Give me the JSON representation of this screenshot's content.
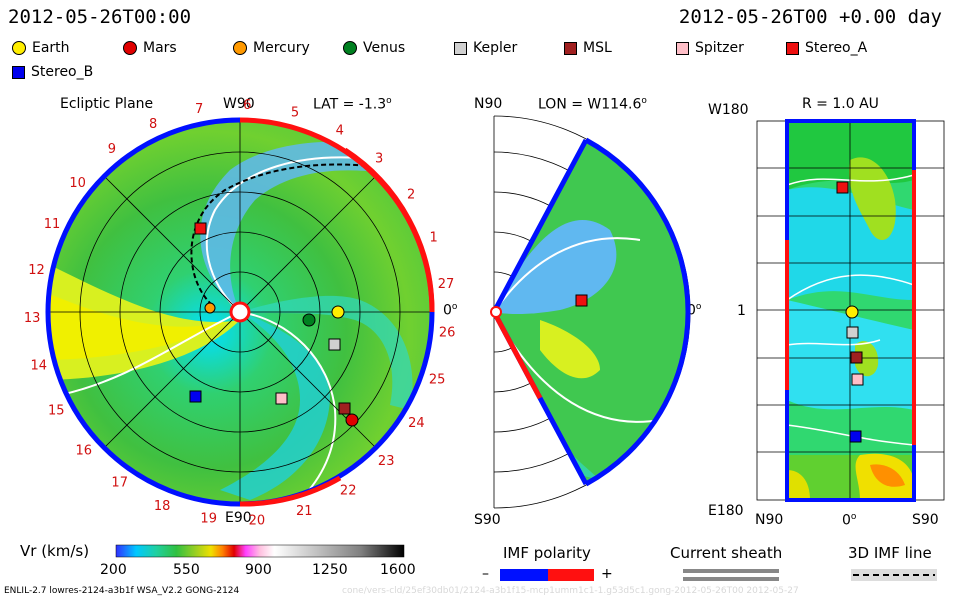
{
  "header": {
    "left_title": "2012-05-26T00:00",
    "right_title": "2012-05-26T00 +0.00 day"
  },
  "legend": [
    {
      "name": "Earth",
      "color": "#ffee00",
      "shape": "circle"
    },
    {
      "name": "Mars",
      "color": "#e00000",
      "shape": "circle"
    },
    {
      "name": "Mercury",
      "color": "#ff9900",
      "shape": "circle"
    },
    {
      "name": "Venus",
      "color": "#008020",
      "shape": "circle"
    },
    {
      "name": "Kepler",
      "color": "#d0d0d0",
      "shape": "square"
    },
    {
      "name": "MSL",
      "color": "#a02020",
      "shape": "square"
    },
    {
      "name": "Spitzer",
      "color": "#ffbfc8",
      "shape": "square"
    },
    {
      "name": "Stereo_A",
      "color": "#ee1010",
      "shape": "square"
    },
    {
      "name": "Stereo_B",
      "color": "#0000ee",
      "shape": "square"
    }
  ],
  "panel1": {
    "title": "Ecliptic Plane",
    "top_label": "W90",
    "lat_label": "LAT = -1.3",
    "lat_deg": "o",
    "bottom_label": "E90",
    "right_label": "0",
    "right_deg": "o",
    "hour_ticks": [
      "19",
      "20",
      "21",
      "22",
      "23",
      "24",
      "25",
      "26",
      "27",
      "1",
      "2",
      "3",
      "4",
      "5",
      "6",
      "7",
      "8",
      "9",
      "10",
      "11",
      "12",
      "13",
      "14",
      "15",
      "16",
      "17",
      "18"
    ]
  },
  "panel2": {
    "top_label": "N90",
    "lon_label": "LON = W114.6",
    "lon_deg": "o",
    "bottom_label": "S90",
    "right_label": "0",
    "right_deg": "o"
  },
  "panel3": {
    "top_left": "W180",
    "r_label": "R = 1.0 AU",
    "mid_left": "1",
    "bottom_left": "E180",
    "bottom_n": "N90",
    "bottom_0": "0",
    "bottom_0_deg": "o",
    "bottom_s": "S90"
  },
  "colorbar": {
    "label": "Vr (km/s)",
    "ticks": [
      "200",
      "550",
      "900",
      "1250",
      "1600"
    ],
    "stops": [
      "#3030ff",
      "#00c8ff",
      "#20d0a0",
      "#30c040",
      "#a0d020",
      "#f0e000",
      "#ff8000",
      "#e00000",
      "#ff40ff",
      "#ffc0e0",
      "#ffffff",
      "#c0c0c0",
      "#808080",
      "#404040",
      "#000000"
    ]
  },
  "imf": {
    "title": "IMF polarity",
    "minus": "–",
    "plus": "+",
    "neg_color": "#0010ff",
    "pos_color": "#ff1010"
  },
  "sheath": {
    "title": "Current sheath"
  },
  "imf3d": {
    "title": "3D IMF line"
  },
  "footer": {
    "left": "ENLIL-2.7 lowres-2124-a3b1f WSA_V2.2 GONG-2124",
    "right": "cone/vers-cld/25ef30db01/2124-a3b1f15-mcp1umm1c1-1.g53d5c1.gong-2012-05-26T00   2012-05-27"
  }
}
